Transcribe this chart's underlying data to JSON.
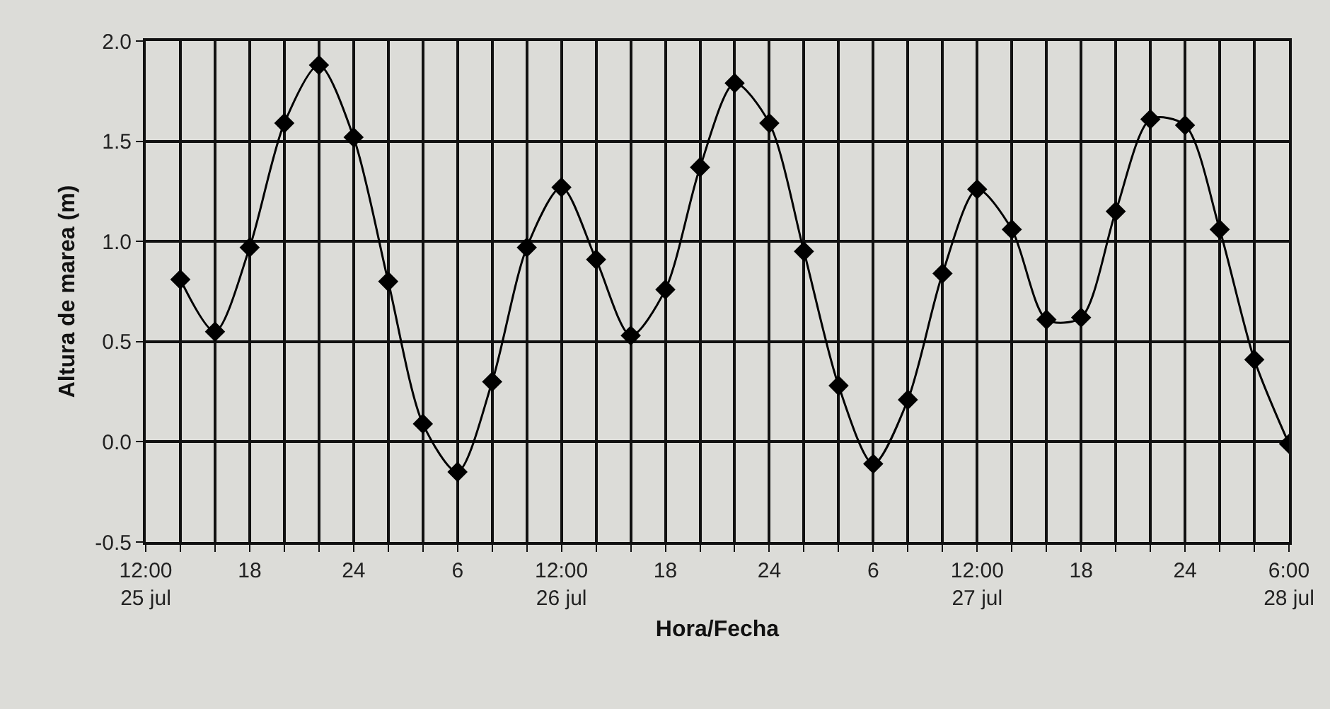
{
  "chart_data": {
    "type": "line",
    "xlabel": "Hora/Fecha",
    "ylabel": "Altura de marea (m)",
    "x": [
      "--07-25T14:00",
      "--07-25T16:00",
      "--07-25T18:00",
      "--07-25T20:00",
      "--07-25T22:00",
      "--07-26T00:00",
      "--07-26T02:00",
      "--07-26T04:00",
      "--07-26T06:00",
      "--07-26T08:00",
      "--07-26T10:00",
      "--07-26T12:00",
      "--07-26T14:00",
      "--07-26T16:00",
      "--07-26T18:00",
      "--07-26T20:00",
      "--07-26T22:00",
      "--07-27T00:00",
      "--07-27T02:00",
      "--07-27T04:00",
      "--07-27T06:00",
      "--07-27T08:00",
      "--07-27T10:00",
      "--07-27T12:00",
      "--07-27T14:00",
      "--07-27T16:00",
      "--07-27T18:00",
      "--07-27T20:00",
      "--07-27T22:00",
      "--07-28T00:00",
      "--07-28T02:00",
      "--07-28T04:00",
      "--07-28T06:00"
    ],
    "series": [
      {
        "color": "#000000",
        "values": [
          0.81,
          0.55,
          0.97,
          1.59,
          1.88,
          1.52,
          0.8,
          0.09,
          -0.15,
          0.3,
          0.97,
          1.27,
          0.91,
          0.53,
          0.76,
          1.37,
          1.79,
          1.59,
          0.95,
          0.28,
          -0.11,
          0.21,
          0.84,
          1.26,
          1.06,
          0.61,
          0.62,
          1.15,
          1.61,
          1.58,
          1.06,
          0.41,
          -0.01
        ]
      }
    ],
    "xlim": [
      "--07-25T12:00",
      "--07-28T06:00"
    ],
    "xticks": [
      {
        "value": "--07-25T12:00",
        "label": "12:00\n25 jul"
      },
      {
        "value": "--07-25T14:00",
        "label": null
      },
      {
        "value": "--07-25T16:00",
        "label": null
      },
      {
        "value": "--07-25T18:00",
        "label": "18"
      },
      {
        "value": "--07-25T20:00",
        "label": null
      },
      {
        "value": "--07-25T22:00",
        "label": null
      },
      {
        "value": "--07-26T00:00",
        "label": "24"
      },
      {
        "value": "--07-26T02:00",
        "label": null
      },
      {
        "value": "--07-26T04:00",
        "label": null
      },
      {
        "value": "--07-26T06:00",
        "label": "6"
      },
      {
        "value": "--07-26T08:00",
        "label": null
      },
      {
        "value": "--07-26T10:00",
        "label": null
      },
      {
        "value": "--07-26T12:00",
        "label": "12:00\n26 jul"
      },
      {
        "value": "--07-26T14:00",
        "label": null
      },
      {
        "value": "--07-26T16:00",
        "label": null
      },
      {
        "value": "--07-26T18:00",
        "label": "18"
      },
      {
        "value": "--07-26T20:00",
        "label": null
      },
      {
        "value": "--07-26T22:00",
        "label": null
      },
      {
        "value": "--07-27T00:00",
        "label": "24"
      },
      {
        "value": "--07-27T02:00",
        "label": null
      },
      {
        "value": "--07-27T04:00",
        "label": null
      },
      {
        "value": "--07-27T06:00",
        "label": "6"
      },
      {
        "value": "--07-27T08:00",
        "label": null
      },
      {
        "value": "--07-27T10:00",
        "label": null
      },
      {
        "value": "--07-27T12:00",
        "label": "12:00\n27 jul"
      },
      {
        "value": "--07-27T14:00",
        "label": null
      },
      {
        "value": "--07-27T16:00",
        "label": null
      },
      {
        "value": "--07-27T18:00",
        "label": "18"
      },
      {
        "value": "--07-27T20:00",
        "label": null
      },
      {
        "value": "--07-27T22:00",
        "label": null
      },
      {
        "value": "--07-28T00:00",
        "label": "24"
      },
      {
        "value": "--07-28T02:00",
        "label": null
      },
      {
        "value": "--07-28T04:00",
        "label": null
      },
      {
        "value": "--07-28T06:00",
        "label": "6:00\n28 jul"
      }
    ],
    "ylim": [
      -0.5,
      2.0
    ],
    "yticks": [
      {
        "value": -0.5,
        "label": "-0.5"
      },
      {
        "value": 0,
        "label": "0.0"
      },
      {
        "value": 0.5,
        "label": "0.5"
      },
      {
        "value": 1,
        "label": "1.0"
      },
      {
        "value": 1.5,
        "label": "1.5"
      },
      {
        "value": 2,
        "label": "2.0"
      }
    ],
    "grid": true,
    "marker": "diamond",
    "line_style": "solid"
  }
}
